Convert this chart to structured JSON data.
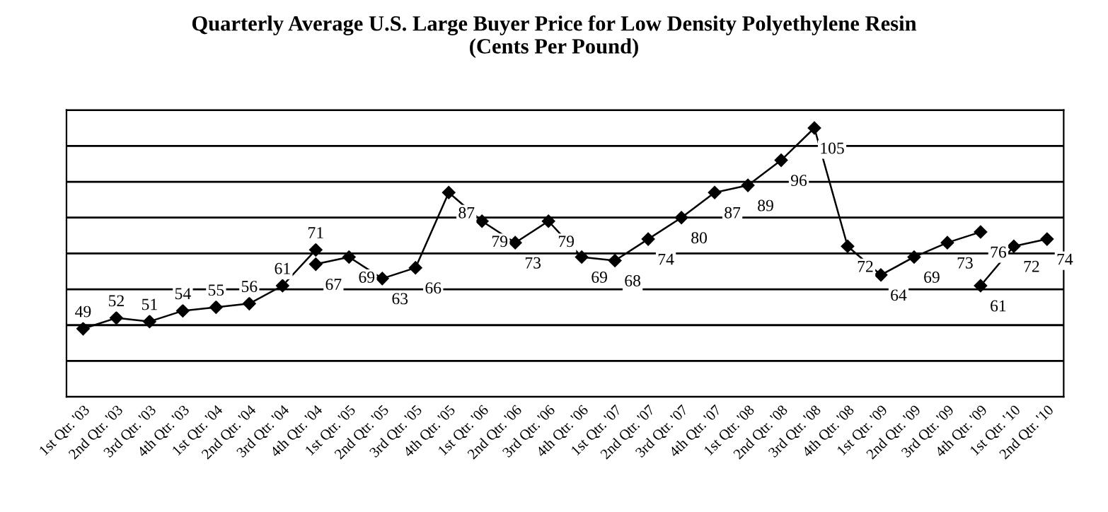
{
  "chart_data": {
    "type": "line",
    "title": "Quarterly Average U.S. Large Buyer Price for Low Density Polyethylene Resin\n(Cents Per Pound)",
    "categories": [
      "1st Qtr. '03",
      "2nd Qtr. '03",
      "3rd Qtr. '03",
      "4th Qtr. '03",
      "1st Qtr. '04",
      "2nd Qtr. '04",
      "3rd Qtr. '04",
      "4th Qtr. '04",
      "1st Qtr. '05",
      "2nd Qtr. '05",
      "3rd Qtr. '05",
      "4th Qtr. '05",
      "1st Qtr. '06",
      "2nd Qtr. '06",
      "3rd Qtr. '06",
      "4th Qtr. '06",
      "1st Qtr. '07",
      "2nd Qtr. '07",
      "3rd Qtr. '07",
      "4th Qtr. '07",
      "1st Qtr. '08",
      "2nd Qtr. '08",
      "3rd Qtr. '08",
      "4th Qtr. '08",
      "1st Qtr. '09",
      "2nd Qtr. '09",
      "3rd Qtr. '09",
      "4th Qtr. '09",
      "1st Qtr. '10",
      "2nd Qtr. '10"
    ],
    "series": [
      {
        "color": "#000000",
        "values": [
          49,
          52,
          51,
          54,
          55,
          56,
          61,
          71,
          null,
          null,
          null,
          null,
          null,
          null,
          null,
          null,
          null,
          null,
          null,
          null,
          null,
          null,
          null,
          null,
          null,
          null,
          null,
          null,
          null,
          null
        ]
      },
      {
        "color": "#000000",
        "values": [
          null,
          null,
          null,
          null,
          null,
          null,
          null,
          67,
          69,
          63,
          66,
          87,
          79,
          73,
          79,
          69,
          68,
          74,
          80,
          87,
          89,
          96,
          105,
          72,
          64,
          69,
          73,
          76,
          null,
          null
        ]
      },
      {
        "color": "#000000",
        "values": [
          null,
          null,
          null,
          null,
          null,
          null,
          null,
          null,
          null,
          null,
          null,
          null,
          null,
          null,
          null,
          null,
          null,
          null,
          null,
          null,
          null,
          null,
          null,
          null,
          null,
          null,
          null,
          61,
          72,
          74
        ]
      }
    ],
    "ylim": [
      30,
      110
    ],
    "yticks": [
      {
        "value": 30,
        "label": null
      },
      {
        "value": 40,
        "label": null
      },
      {
        "value": 50,
        "label": null
      },
      {
        "value": 60,
        "label": null
      },
      {
        "value": 70,
        "label": null
      },
      {
        "value": 80,
        "label": null
      },
      {
        "value": 90,
        "label": null
      },
      {
        "value": 100,
        "label": null
      },
      {
        "value": 110,
        "label": null
      }
    ],
    "tick_labels": "x",
    "grid": "y",
    "legend": false,
    "marker": "diamond",
    "line_style": "solid",
    "data_labels": true
  }
}
